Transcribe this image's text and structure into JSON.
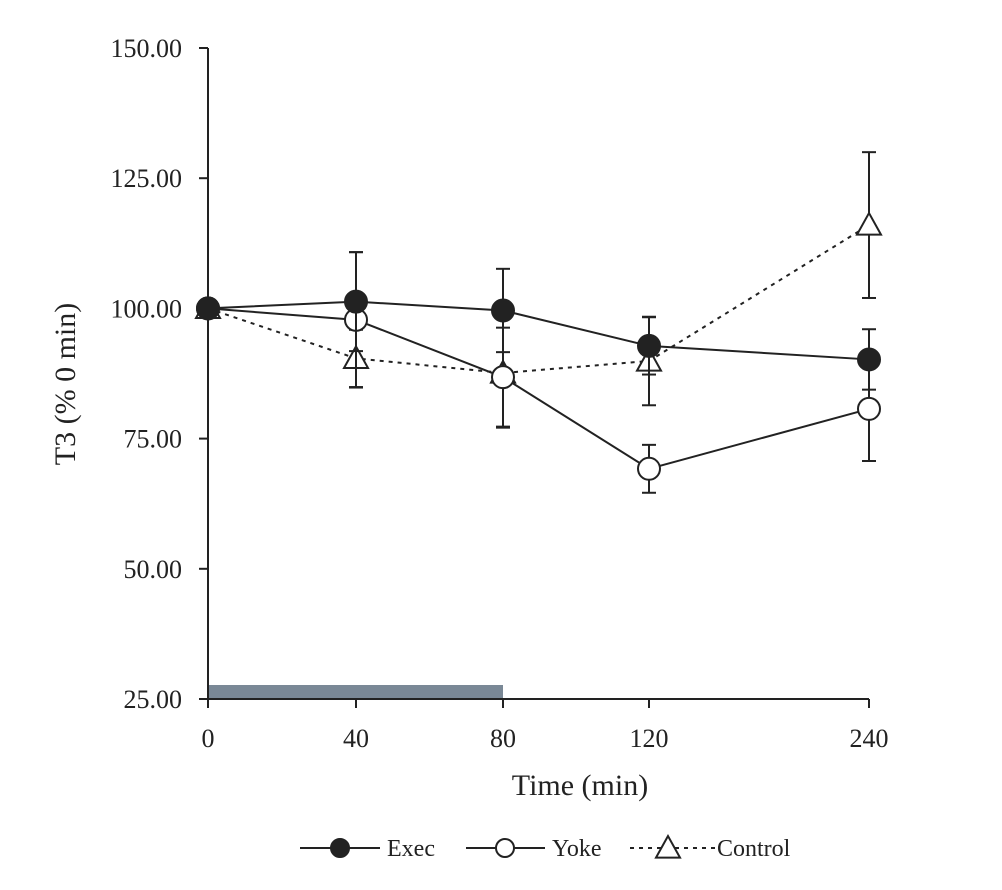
{
  "chart_data": {
    "type": "line",
    "categories": [
      "0",
      "40",
      "80",
      "120",
      "240"
    ],
    "xlabel": "Time (min)",
    "ylabel": "T3 (% 0 min)",
    "ylim": [
      25,
      150
    ],
    "yticks": [
      "25.00",
      "50.00",
      "75.00",
      "100.00",
      "125.00",
      "150.00"
    ],
    "grid": false,
    "legend_position": "bottom",
    "exercise_bar": {
      "from_category": "0",
      "to_category": "80",
      "color": "#7a8896"
    },
    "series": [
      {
        "name": "Exec",
        "marker": "filled-circle",
        "line": "solid",
        "values": [
          100.0,
          101.3,
          99.6,
          92.8,
          90.2
        ],
        "error": [
          0,
          9.5,
          8.0,
          5.5,
          5.8
        ]
      },
      {
        "name": "Yoke",
        "marker": "open-circle",
        "line": "solid",
        "values": [
          100.0,
          97.8,
          86.8,
          69.2,
          80.7
        ],
        "error": [
          0,
          13.0,
          9.5,
          4.6,
          10.0
        ]
      },
      {
        "name": "Control",
        "marker": "open-triangle",
        "line": "dotted",
        "values": [
          100.0,
          90.4,
          87.6,
          89.9,
          116.0
        ],
        "error": [
          0,
          5.5,
          10.5,
          8.5,
          14.0
        ]
      }
    ]
  }
}
